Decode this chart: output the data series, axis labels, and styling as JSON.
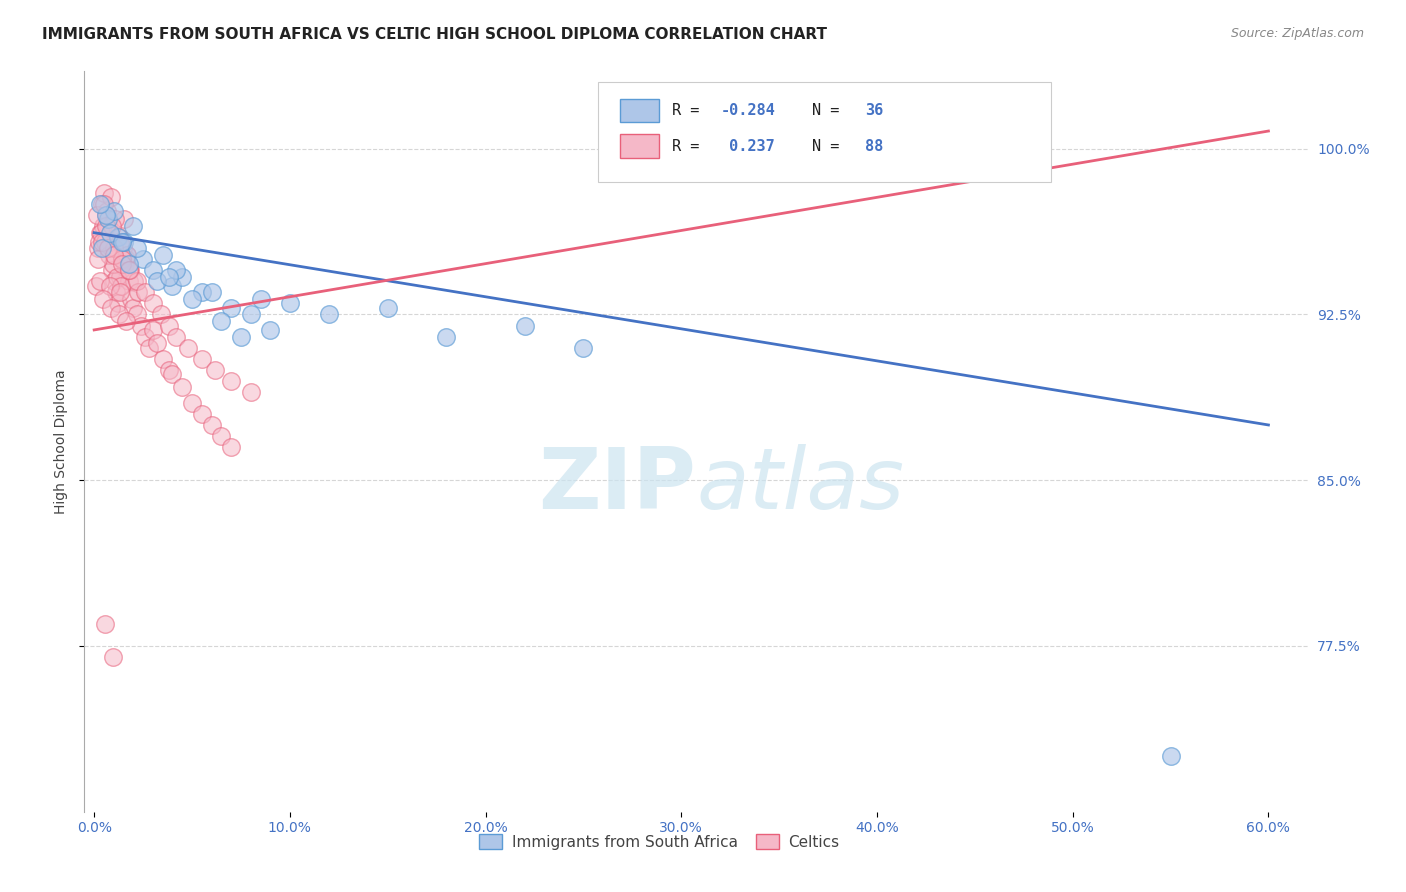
{
  "title": "IMMIGRANTS FROM SOUTH AFRICA VS CELTIC HIGH SCHOOL DIPLOMA CORRELATION CHART",
  "source": "Source: ZipAtlas.com",
  "ylabel_left": "High School Diploma",
  "xticklabels": [
    "0.0%",
    "10.0%",
    "20.0%",
    "30.0%",
    "40.0%",
    "50.0%",
    "60.0%"
  ],
  "xticks": [
    0.0,
    10.0,
    20.0,
    30.0,
    40.0,
    50.0,
    60.0
  ],
  "yticks_right": [
    77.5,
    85.0,
    92.5,
    100.0
  ],
  "yticklabels_right": [
    "77.5%",
    "85.0%",
    "92.5%",
    "100.0%"
  ],
  "xlim": [
    -0.5,
    62.0
  ],
  "ylim": [
    70.0,
    103.5
  ],
  "blue_color": "#aec6e8",
  "pink_color": "#f5b8c8",
  "blue_edge_color": "#5b9bd5",
  "pink_edge_color": "#e8607a",
  "blue_line_color": "#4472c4",
  "pink_line_color": "#e8607a",
  "background_color": "#ffffff",
  "grid_color": "#cccccc",
  "watermark_color": "#cce4f0",
  "blue_trendline_x0": 0.0,
  "blue_trendline_y0": 96.2,
  "blue_trendline_x1": 60.0,
  "blue_trendline_y1": 87.5,
  "pink_trendline_x0": 0.0,
  "pink_trendline_y0": 91.8,
  "pink_trendline_x1": 60.0,
  "pink_trendline_y1": 100.8,
  "blue_x": [
    0.4,
    0.7,
    1.0,
    1.2,
    1.5,
    2.0,
    2.5,
    3.0,
    3.5,
    4.0,
    4.5,
    5.5,
    7.0,
    8.5,
    10.0,
    12.0,
    15.0,
    18.0,
    22.0,
    25.0,
    0.8,
    1.8,
    3.2,
    5.0,
    6.5,
    9.0,
    0.6,
    2.2,
    4.2,
    6.0,
    8.0,
    55.0,
    0.3,
    1.4,
    3.8,
    7.5
  ],
  "blue_y": [
    95.5,
    96.8,
    97.2,
    96.0,
    95.8,
    96.5,
    95.0,
    94.5,
    95.2,
    93.8,
    94.2,
    93.5,
    92.8,
    93.2,
    93.0,
    92.5,
    92.8,
    91.5,
    92.0,
    91.0,
    96.2,
    94.8,
    94.0,
    93.2,
    92.2,
    91.8,
    97.0,
    95.5,
    94.5,
    93.5,
    92.5,
    72.5,
    97.5,
    95.8,
    94.2,
    91.5
  ],
  "pink_x": [
    0.1,
    0.2,
    0.3,
    0.4,
    0.5,
    0.6,
    0.7,
    0.8,
    0.9,
    1.0,
    1.1,
    1.2,
    1.3,
    1.4,
    1.5,
    1.6,
    1.7,
    1.8,
    1.9,
    2.0,
    2.2,
    2.4,
    2.6,
    2.8,
    3.0,
    3.2,
    3.5,
    3.8,
    4.0,
    4.5,
    5.0,
    5.5,
    6.0,
    6.5,
    7.0,
    0.25,
    0.45,
    0.65,
    0.85,
    1.05,
    1.25,
    1.45,
    1.65,
    1.85,
    2.05,
    2.25,
    0.35,
    0.55,
    0.75,
    0.95,
    1.15,
    1.35,
    0.15,
    0.5,
    0.9,
    1.3,
    1.7,
    0.6,
    1.0,
    1.4,
    1.8,
    2.2,
    2.6,
    3.0,
    3.4,
    3.8,
    4.2,
    4.8,
    5.5,
    6.2,
    7.0,
    8.0,
    0.2,
    0.4,
    0.7,
    1.0,
    1.4,
    1.8,
    0.3,
    0.8,
    1.3,
    0.45,
    0.85,
    1.25,
    1.65,
    0.55,
    0.95
  ],
  "pink_y": [
    93.8,
    95.5,
    96.2,
    97.5,
    98.0,
    97.0,
    96.5,
    95.8,
    94.5,
    94.0,
    93.5,
    93.0,
    94.2,
    95.0,
    96.8,
    94.8,
    95.2,
    94.0,
    93.2,
    92.8,
    92.5,
    92.0,
    91.5,
    91.0,
    91.8,
    91.2,
    90.5,
    90.0,
    89.8,
    89.2,
    88.5,
    88.0,
    87.5,
    87.0,
    86.5,
    95.8,
    96.5,
    97.2,
    97.8,
    96.8,
    96.0,
    95.5,
    95.0,
    94.5,
    94.0,
    93.5,
    96.2,
    95.8,
    95.2,
    94.8,
    94.2,
    93.8,
    97.0,
    97.5,
    96.5,
    95.8,
    95.2,
    96.5,
    95.5,
    95.0,
    94.5,
    94.0,
    93.5,
    93.0,
    92.5,
    92.0,
    91.5,
    91.0,
    90.5,
    90.0,
    89.5,
    89.0,
    95.0,
    95.8,
    95.5,
    95.2,
    94.8,
    94.5,
    94.0,
    93.8,
    93.5,
    93.2,
    92.8,
    92.5,
    92.2,
    78.5,
    77.0
  ]
}
